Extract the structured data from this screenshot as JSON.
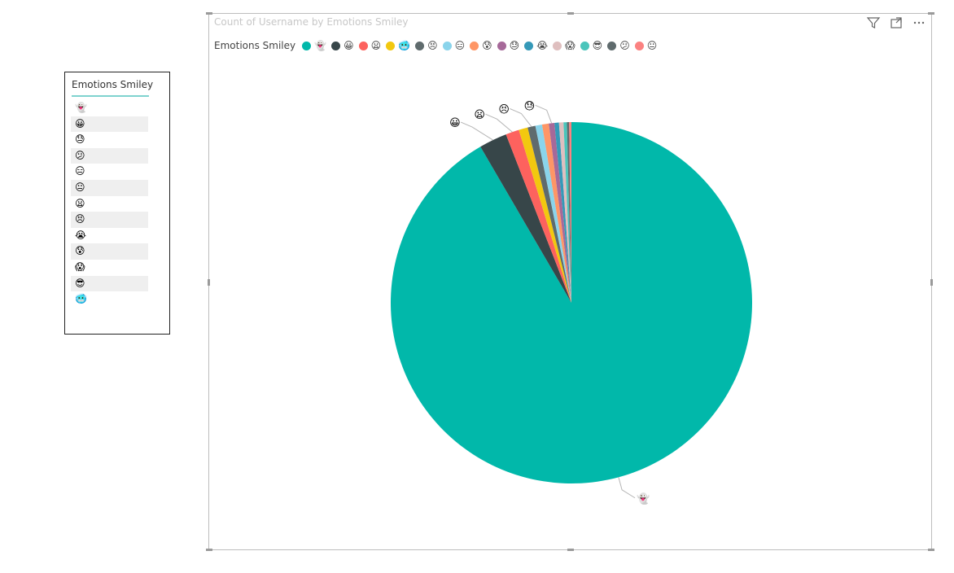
{
  "slicer": {
    "title": "Emotions Smiley",
    "items": [
      "👻",
      "😀",
      "😓",
      "😕",
      "😑",
      "😐",
      "😦",
      "😣",
      "😭",
      "😰",
      "😱",
      "😎",
      "🥶"
    ]
  },
  "visual": {
    "title": "Count of Username by Emotions Smiley",
    "toolbar": {
      "filter_icon": "filter-icon",
      "focus_icon": "focus-mode-icon",
      "more_icon": "more-options-icon"
    }
  },
  "chart_data": {
    "type": "pie",
    "title": "Count of Username by Emotions Smiley",
    "legend_title": "Emotions Smiley",
    "legend_position": "top-left",
    "slices": [
      {
        "label": "👻",
        "value": 91.6,
        "color": "#01B8AA"
      },
      {
        "label": "😀",
        "value": 2.5,
        "color": "#374649"
      },
      {
        "label": "😦",
        "value": 1.2,
        "color": "#FD625E"
      },
      {
        "label": "🥶",
        "value": 0.8,
        "color": "#F2C80F"
      },
      {
        "label": "😣",
        "value": 0.7,
        "color": "#5F6B6D"
      },
      {
        "label": "😑",
        "value": 0.6,
        "color": "#8AD4EB"
      },
      {
        "label": "😰",
        "value": 0.6,
        "color": "#FE9666"
      },
      {
        "label": "😓",
        "value": 0.5,
        "color": "#A66999"
      },
      {
        "label": "😭",
        "value": 0.4,
        "color": "#3599B8"
      },
      {
        "label": "😱",
        "value": 0.4,
        "color": "#DFBFBF"
      },
      {
        "label": "😎",
        "value": 0.3,
        "color": "#4AC5BB"
      },
      {
        "label": "😕",
        "value": 0.2,
        "color": "#5F6B6D"
      },
      {
        "label": "😐",
        "value": 0.2,
        "color": "#FB8281"
      }
    ],
    "data_labels": [
      "👻",
      "😀",
      "😦",
      "😣",
      "😓"
    ]
  }
}
